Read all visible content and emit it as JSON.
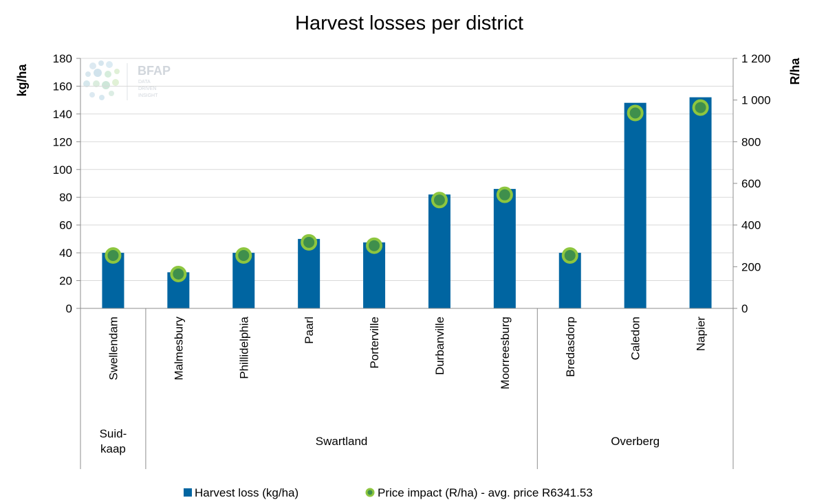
{
  "chart_data": {
    "type": "bar",
    "title": "Harvest losses per district",
    "ylabel": "kg/ha",
    "y2label": "R/ha",
    "ylim": [
      0,
      180
    ],
    "y2lim": [
      0,
      1200
    ],
    "yticks": [
      "0",
      "20",
      "40",
      "60",
      "80",
      "100",
      "120",
      "140",
      "160",
      "180"
    ],
    "y2ticks": [
      "0",
      "200",
      "400",
      "600",
      "800",
      "1 000",
      "1 200"
    ],
    "grid": true,
    "legend_position": "bottom",
    "categories": [
      "Swellendam",
      "Malmesbury",
      "Phillidelphia",
      "Paarl",
      "Porterville",
      "Durbanville",
      "Moorreesburg",
      "Bredasdorp",
      "Caledon",
      "Napier"
    ],
    "groups": [
      {
        "label_lines": [
          "Suid-",
          "kaap"
        ],
        "count": 1
      },
      {
        "label_lines": [
          "Swartland"
        ],
        "count": 6
      },
      {
        "label_lines": [
          "Overberg"
        ],
        "count": 3
      }
    ],
    "series": [
      {
        "name": "Harvest loss (kg/ha)",
        "type": "bar",
        "axis": "left",
        "color": "#0065a1",
        "values": [
          40,
          26,
          40,
          50,
          47.5,
          82,
          86,
          40,
          148,
          152
        ]
      },
      {
        "name": "Price impact (R/ha) - avg. price R6341.53",
        "type": "scatter",
        "axis": "right",
        "color": "#8dc63f",
        "values": [
          254,
          165,
          254,
          317,
          301,
          520,
          545,
          254,
          938,
          964
        ]
      }
    ],
    "watermark": {
      "name": "BFAP",
      "lines": [
        "DATA",
        "DRIVEN",
        "INSIGHT"
      ]
    }
  }
}
